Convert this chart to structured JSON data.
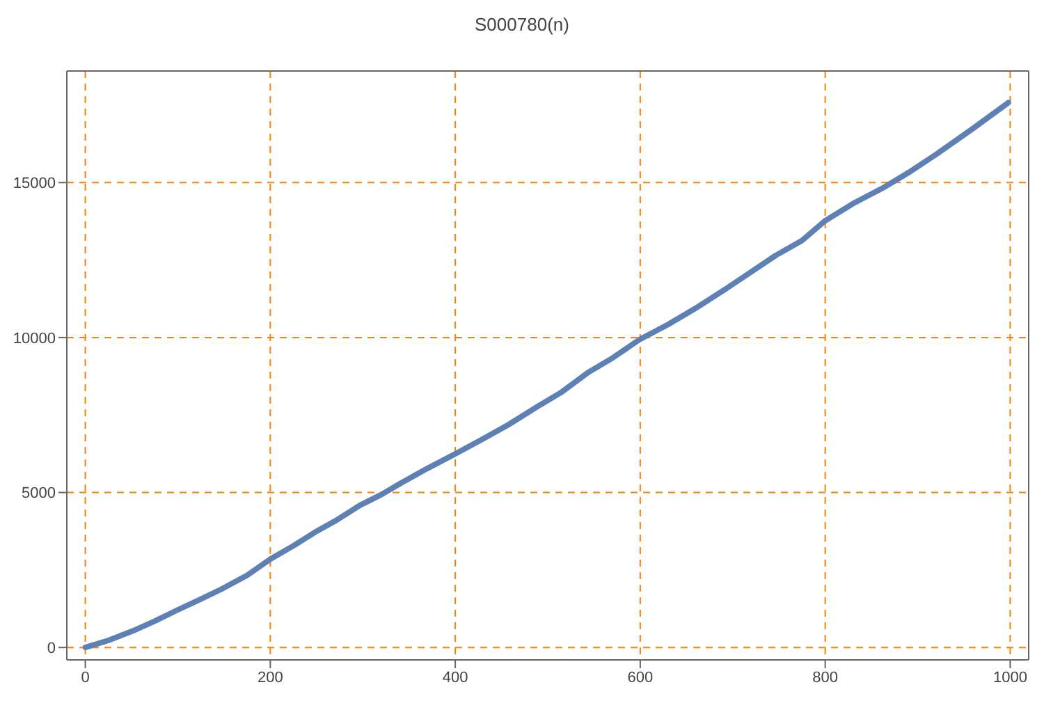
{
  "chart_data": {
    "type": "line",
    "title": "S000780(n)",
    "x": [
      0,
      25,
      51,
      75,
      99,
      125,
      147,
      175,
      200,
      225,
      249,
      270,
      297,
      320,
      341,
      370,
      399,
      430,
      457,
      486,
      514,
      543,
      570,
      599,
      630,
      659,
      690,
      717,
      746,
      775,
      800,
      830,
      862,
      890,
      920,
      960,
      998
    ],
    "series": [
      {
        "color": "#5e81b5",
        "values": [
          0,
          230,
          530,
          850,
          1200,
          1560,
          1880,
          2330,
          2850,
          3280,
          3730,
          4080,
          4590,
          4930,
          5300,
          5780,
          6230,
          6730,
          7180,
          7720,
          8220,
          8860,
          9340,
          9930,
          10420,
          10930,
          11520,
          12060,
          12640,
          13130,
          13770,
          14320,
          14820,
          15320,
          15910,
          16750,
          17580
        ]
      }
    ],
    "xlim": [
      -20,
      1020
    ],
    "ylim": [
      -400,
      18600
    ],
    "xticks": [
      0,
      200,
      400,
      600,
      800,
      1000
    ],
    "yticks": [
      0,
      5000,
      10000,
      15000
    ],
    "grid": true,
    "line_style": "solid",
    "marker": "none"
  }
}
